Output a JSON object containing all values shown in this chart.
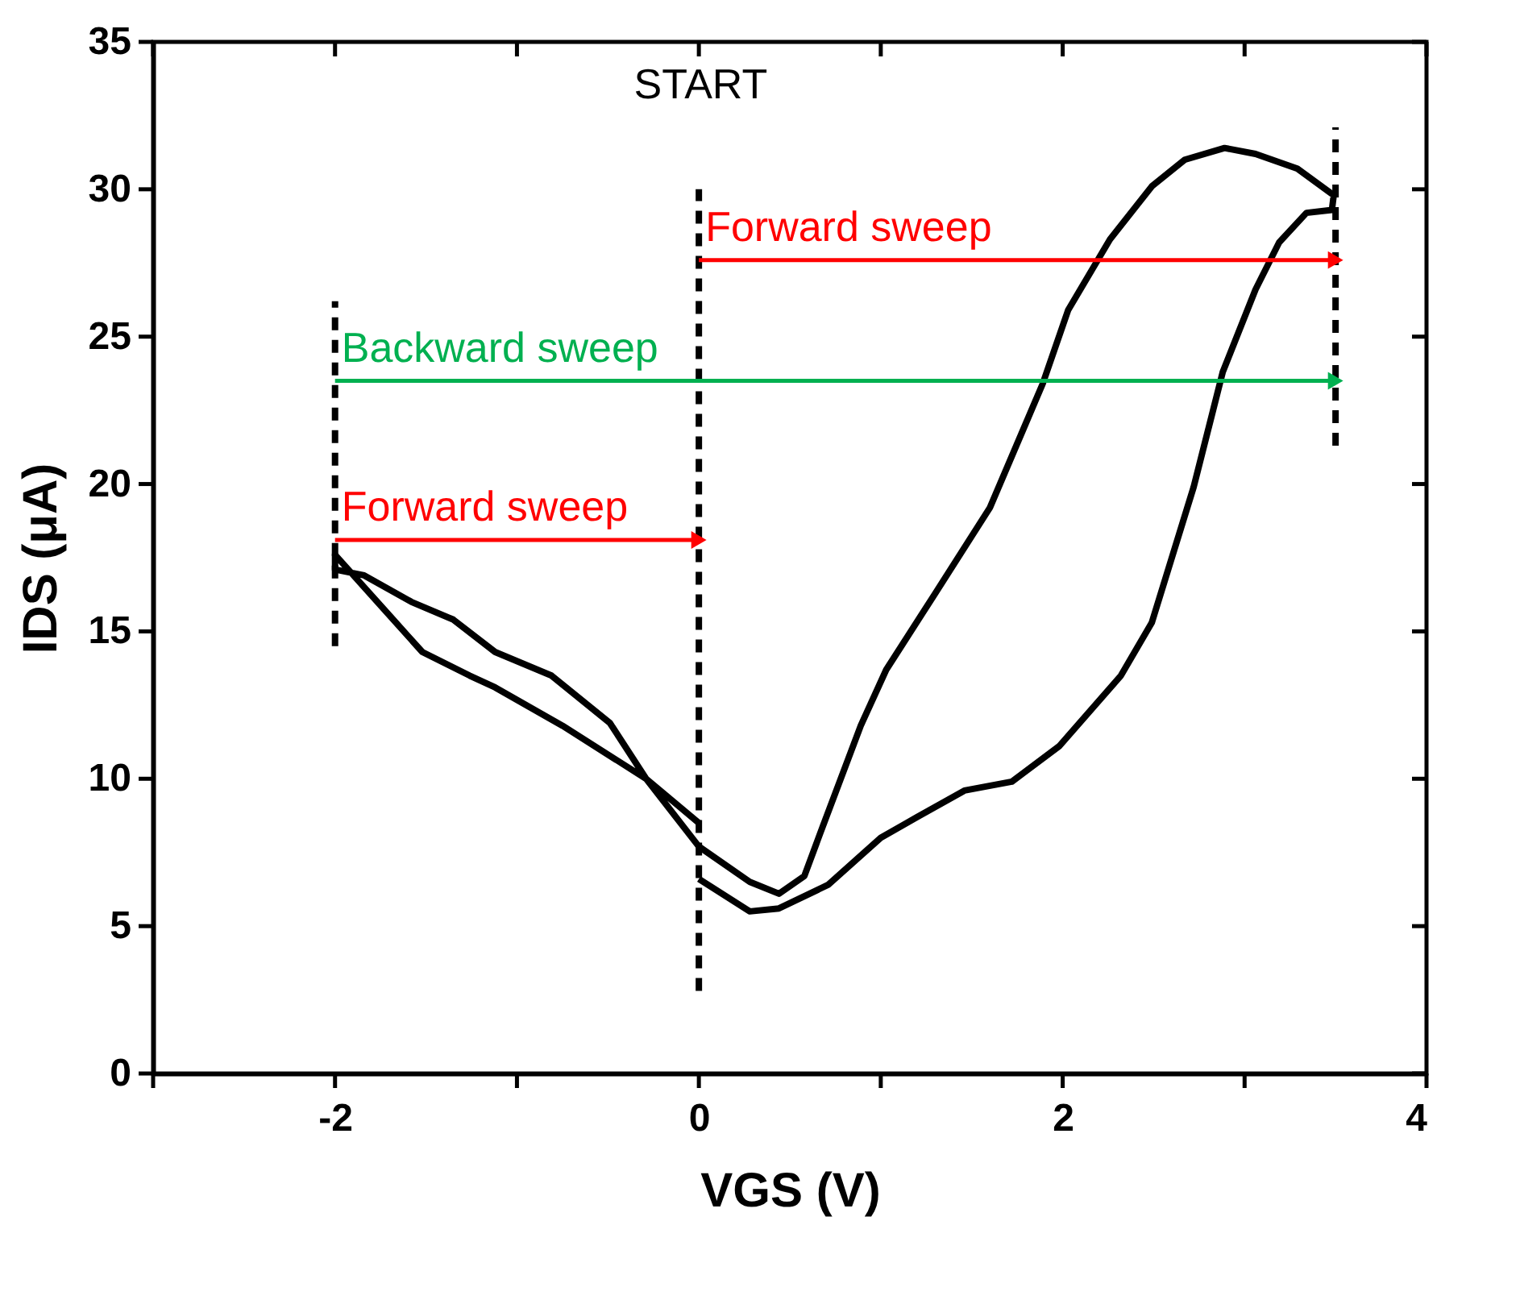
{
  "chart_data": {
    "type": "line",
    "xlabel": "VGS (V)",
    "ylabel": "IDS (μA)",
    "xlim": [
      -3,
      4
    ],
    "xticks": [
      {
        "value": -3,
        "label": null
      },
      -2,
      {
        "value": -1,
        "label": null
      },
      0,
      {
        "value": 1,
        "label": null
      },
      2,
      {
        "value": 3,
        "label": null
      },
      4
    ],
    "ylim": [
      0,
      35
    ],
    "yticks": [
      0,
      5,
      10,
      15,
      20,
      25,
      30,
      35
    ],
    "grid": false,
    "annotations": [
      "START"
    ],
    "series": [
      {
        "color": "#000000",
        "x": [
          0,
          0.28,
          0.44,
          0.71,
          1.0,
          1.2,
          1.46,
          1.72,
          1.98,
          2.32,
          2.49,
          2.72,
          2.88,
          3.06,
          3.19,
          3.34,
          3.48,
          3.49,
          3.29,
          3.06,
          2.89,
          2.67,
          2.49,
          2.26,
          2.03,
          1.89,
          1.6,
          1.29,
          1.03,
          0.89,
          0.67,
          0.58,
          0.44,
          0.28,
          0,
          -0.29,
          -0.49,
          -0.81,
          -1.12,
          -1.35,
          -1.58,
          -1.84,
          -2.0,
          -2.0,
          -1.52,
          -1.26,
          -1.12,
          -0.75,
          -0.29,
          0
        ],
        "values": [
          6.6,
          5.5,
          5.6,
          6.4,
          8.0,
          8.7,
          9.6,
          9.9,
          11.1,
          13.5,
          15.3,
          19.9,
          23.8,
          26.6,
          28.2,
          29.2,
          29.3,
          29.8,
          30.7,
          31.2,
          31.4,
          31.0,
          30.1,
          28.3,
          25.9,
          23.4,
          19.2,
          16.2,
          13.7,
          11.8,
          8.2,
          6.7,
          6.1,
          6.5,
          7.7,
          10.0,
          11.9,
          13.5,
          14.3,
          15.4,
          16.0,
          16.9,
          17.1,
          17.6,
          14.3,
          13.5,
          13.1,
          11.8,
          10.0,
          8.5
        ]
      },
      {
        "color": "#000000",
        "line_style": "dashed",
        "x": [
          -2,
          -2
        ],
        "values": [
          14.5,
          26.2
        ]
      },
      {
        "color": "#000000",
        "line_style": "dashed",
        "x": [
          0,
          0
        ],
        "values": [
          2.8,
          30.0
        ]
      },
      {
        "color": "#000000",
        "line_style": "dashed",
        "x": [
          3.5,
          3.5
        ],
        "values": [
          21.3,
          32.1
        ]
      },
      {
        "name": "Forward sweep",
        "color": "#ff0000",
        "x": [
          -2,
          0
        ],
        "values": [
          18.1,
          18.1
        ]
      },
      {
        "name": "Forward sweep",
        "color": "#ff0000",
        "x": [
          0,
          3.5
        ],
        "values": [
          27.6,
          27.6
        ]
      },
      {
        "name": "Backward sweep",
        "color": "#00b050",
        "x": [
          -2,
          3.5
        ],
        "values": [
          23.5,
          23.5
        ]
      }
    ]
  }
}
